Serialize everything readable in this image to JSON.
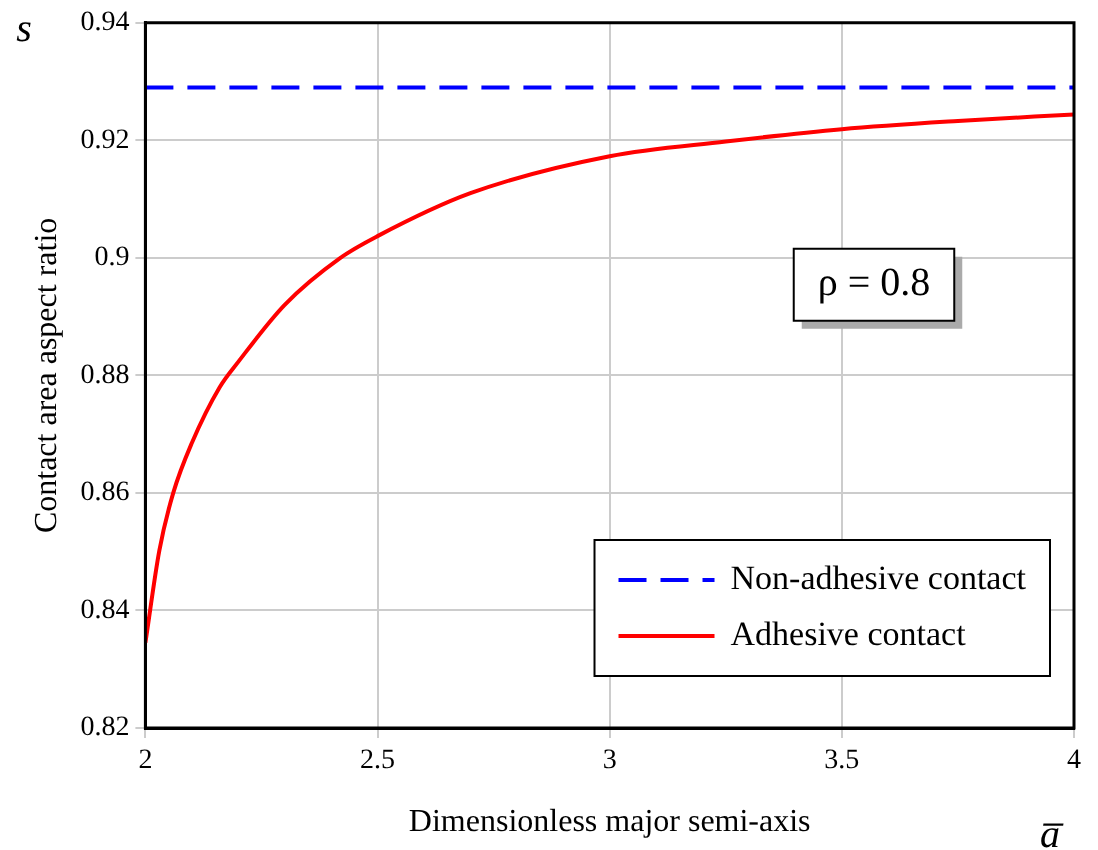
{
  "chart_data": {
    "type": "line",
    "xlabel": "Dimensionless major semi-axis",
    "ylabel": "Contact area aspect ratio",
    "annotations": [
      "ρ = 0.8",
      "a̅",
      "s"
    ],
    "xlim": [
      2,
      4
    ],
    "xticks": [
      2,
      2.5,
      3,
      3.5,
      4
    ],
    "ylim": [
      0.82,
      0.94
    ],
    "yticks": [
      0.82,
      0.84,
      0.86,
      0.88,
      0.9,
      0.92,
      0.94
    ],
    "grid": true,
    "legend": "bottom right",
    "marker": "none",
    "series": [
      {
        "name": "Non-adhesive contact",
        "color": "#0000ff",
        "line_style": "dashed",
        "x": [
          2,
          4
        ],
        "values": [
          0.929,
          0.929
        ]
      },
      {
        "name": "Adhesive contact",
        "color": "#ff0000",
        "line_style": "solid",
        "x": [
          2,
          2.03,
          2.06,
          2.1,
          2.16,
          2.2,
          2.3,
          2.42,
          2.5,
          2.7,
          3,
          3.25,
          3.5,
          3.75,
          4
        ],
        "values": [
          0.8345,
          0.8502,
          0.86,
          0.8685,
          0.878,
          0.8823,
          0.892,
          0.9,
          0.9037,
          0.911,
          0.9173,
          0.9198,
          0.9219,
          0.9233,
          0.9244
        ]
      }
    ]
  }
}
